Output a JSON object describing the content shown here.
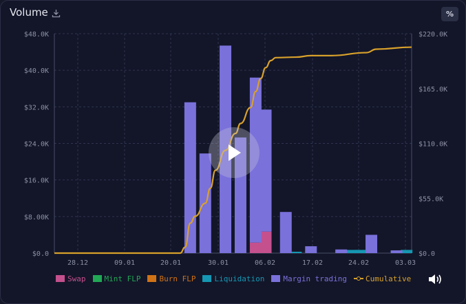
{
  "header": {
    "title": "Volume",
    "percent_label": "%"
  },
  "colors": {
    "swap": "#c4508e",
    "mint": "#22a855",
    "burn": "#d07216",
    "liquidation": "#1597b3",
    "margin": "#7a71db",
    "cumulative": "#d9a12b",
    "grid": "#2f3450",
    "axis_text": "#8d91a5"
  },
  "chart_data": {
    "type": "bar",
    "title": "Volume",
    "x_ticks": [
      "28.12",
      "09.01",
      "20.01",
      "30.01",
      "06.02",
      "17.02",
      "24.02",
      "03.03"
    ],
    "left_axis": {
      "ticks": [
        "$0.0",
        "$8.00K",
        "$16.0K",
        "$24.0K",
        "$32.0K",
        "$40.0K",
        "$48.0K"
      ],
      "range": [
        0,
        48000
      ]
    },
    "right_axis": {
      "ticks": [
        "$0.0",
        "$55.0K",
        "$110.0K",
        "$165.0K",
        "$220.0K"
      ],
      "range": [
        0,
        220000
      ]
    },
    "date_range": [
      "2024-12-24",
      "2025-03-05"
    ],
    "series": [
      {
        "name": "Margin trading",
        "type": "bar",
        "points": [
          [
            "2025-01-20",
            33000
          ],
          [
            "2025-01-23",
            21800
          ],
          [
            "2025-01-27",
            45400
          ],
          [
            "2025-01-30",
            25300
          ],
          [
            "2025-02-02",
            36100
          ],
          [
            "2025-02-04",
            26700
          ],
          [
            "2025-02-08",
            9000
          ],
          [
            "2025-02-13",
            1500
          ],
          [
            "2025-02-19",
            800
          ],
          [
            "2025-02-25",
            4000
          ],
          [
            "2025-03-02",
            600
          ]
        ]
      },
      {
        "name": "Swap",
        "type": "bar",
        "points": [
          [
            "2025-02-02",
            2300
          ],
          [
            "2025-02-04",
            4700
          ]
        ]
      },
      {
        "name": "Liquidation",
        "type": "bar",
        "points": [
          [
            "2025-02-10",
            300
          ],
          [
            "2025-02-21",
            700
          ],
          [
            "2025-02-23",
            700
          ],
          [
            "2025-03-04",
            700
          ]
        ]
      },
      {
        "name": "Mint FLP",
        "type": "bar",
        "points": []
      },
      {
        "name": "Burn FLP",
        "type": "bar",
        "points": []
      },
      {
        "name": "Cumulative",
        "type": "line",
        "axis": "right",
        "points": [
          [
            "2024-12-24",
            0
          ],
          [
            "2025-01-18",
            0
          ],
          [
            "2025-01-19",
            6000
          ],
          [
            "2025-01-20",
            30000
          ],
          [
            "2025-01-21",
            37000
          ],
          [
            "2025-01-23",
            50000
          ],
          [
            "2025-01-24",
            65000
          ],
          [
            "2025-01-25",
            83000
          ],
          [
            "2025-01-27",
            103000
          ],
          [
            "2025-01-29",
            120000
          ],
          [
            "2025-01-30",
            130000
          ],
          [
            "2025-02-01",
            146000
          ],
          [
            "2025-02-02",
            162000
          ],
          [
            "2025-02-03",
            175000
          ],
          [
            "2025-02-04",
            186000
          ],
          [
            "2025-02-05",
            193000
          ],
          [
            "2025-02-06",
            196000
          ],
          [
            "2025-02-10",
            196500
          ],
          [
            "2025-02-13",
            198000
          ],
          [
            "2025-02-17",
            198000
          ],
          [
            "2025-02-24",
            201000
          ],
          [
            "2025-02-26",
            204500
          ],
          [
            "2025-03-05",
            206500
          ]
        ]
      }
    ],
    "legend": {
      "placement": "bottom",
      "items": [
        {
          "name": "Swap",
          "color": "#c4508e"
        },
        {
          "name": "Mint FLP",
          "color": "#22a855"
        },
        {
          "name": "Burn FLP",
          "color": "#d07216"
        },
        {
          "name": "Liquidation",
          "color": "#1597b3"
        },
        {
          "name": "Margin trading",
          "color": "#7a71db"
        },
        {
          "name": "Cumulative",
          "color": "#d9a12b"
        }
      ]
    },
    "grid": true
  },
  "overlay": {
    "play_icon": "play-icon",
    "speaker_icon": "speaker-icon"
  }
}
